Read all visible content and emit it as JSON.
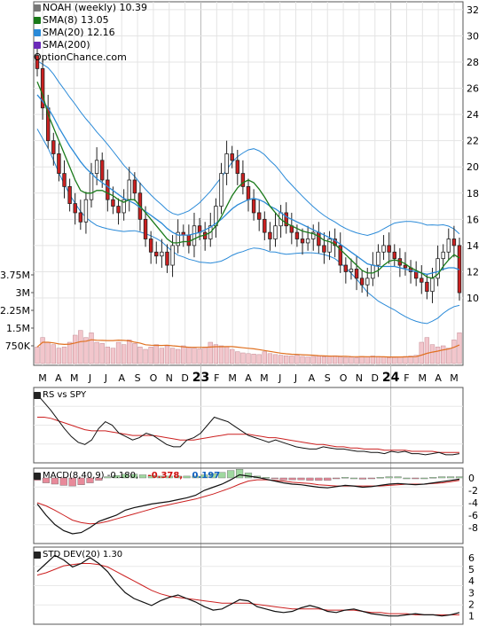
{
  "legend": {
    "ticker_label": "NOAH (weekly) 10.39",
    "sma8_label": "SMA(8) 13.05",
    "sma20_label": "SMA(20) 12.16",
    "sma200_label": "SMA(200)",
    "site": "OptionChance.com",
    "colors": {
      "sma8": "#1a7a1a",
      "sma20": "#2a8ad8",
      "sma200": "#6a2ab8",
      "ticker": "#777777"
    }
  },
  "indicators": {
    "rs_label": "RS vs SPY",
    "macd_label": "MACD(8,40,9) -0.180,",
    "macd_val1": "-0.378,",
    "macd_val2": "0.197",
    "std_label": "STD DEV(20) 1.30"
  },
  "chart_data": [
    {
      "type": "candlestick",
      "title": "NOAH (weekly)",
      "x_labels": [
        "M",
        "A",
        "M",
        "J",
        "J",
        "A",
        "S",
        "O",
        "N",
        "D",
        "23",
        "F",
        "M",
        "A",
        "M",
        "J",
        "J",
        "A",
        "S",
        "O",
        "N",
        "D",
        "24",
        "F",
        "M",
        "A",
        "M"
      ],
      "price_ticks": [
        10,
        12,
        14,
        16,
        18,
        20,
        22,
        24,
        26,
        28,
        30,
        32
      ],
      "volume_ticks": [
        "750K",
        "1.5M",
        "2.25M",
        "3M",
        "3.75M"
      ],
      "close": [
        27.5,
        24.5,
        22.0,
        21.0,
        19.5,
        18.5,
        17.2,
        16.5,
        15.8,
        17.5,
        19.5,
        20.5,
        19.0,
        17.5,
        17.0,
        16.5,
        17.5,
        19.0,
        18.0,
        16.0,
        14.5,
        13.5,
        13.2,
        13.5,
        12.5,
        14.0,
        15.0,
        14.8,
        14.0,
        15.5,
        15.0,
        14.5,
        15.5,
        17.0,
        19.5,
        21.0,
        20.5,
        19.5,
        18.5,
        17.5,
        16.5,
        16.0,
        15.0,
        14.5,
        15.5,
        16.5,
        15.5,
        15.0,
        14.5,
        14.2,
        14.5,
        15.0,
        14.0,
        13.5,
        14.5,
        14.0,
        12.5,
        12.0,
        12.2,
        11.5,
        11.0,
        11.5,
        12.5,
        13.5,
        14.0,
        13.5,
        13.0,
        12.5,
        12.3,
        12.0,
        11.5,
        11.2,
        10.5,
        11.5,
        13.0,
        13.5,
        14.5,
        14.0,
        10.4
      ],
      "sma8": [
        26.5,
        25.5,
        24.0,
        23.0,
        22.0,
        21.0,
        20.0,
        19.0,
        18.2,
        18.0,
        18.0,
        18.2,
        18.2,
        18.0,
        17.8,
        17.5,
        17.3,
        17.5,
        17.5,
        17.0,
        16.5,
        16.0,
        15.5,
        15.0,
        14.5,
        14.2,
        14.2,
        14.3,
        14.3,
        14.5,
        14.7,
        14.8,
        15.0,
        15.5,
        16.2,
        17.0,
        17.8,
        18.4,
        18.8,
        19.0,
        18.8,
        18.3,
        17.7,
        17.0,
        16.5,
        16.0,
        15.7,
        15.5,
        15.3,
        15.1,
        15.0,
        14.9,
        14.7,
        14.4,
        14.3,
        14.1,
        13.7,
        13.3,
        12.9,
        12.5,
        12.1,
        11.9,
        11.9,
        12.1,
        12.5,
        12.8,
        12.9,
        12.8,
        12.6,
        12.3,
        12.1,
        11.9,
        11.6,
        11.5,
        11.8,
        12.4,
        12.9,
        13.3,
        13.05
      ],
      "sma20": [
        25.5,
        25.0,
        24.5,
        23.8,
        23.0,
        22.3,
        21.6,
        21.0,
        20.4,
        19.9,
        19.5,
        19.1,
        18.8,
        18.5,
        18.2,
        17.9,
        17.6,
        17.4,
        17.2,
        16.9,
        16.6,
        16.3,
        16.0,
        15.7,
        15.3,
        15.0,
        14.8,
        14.8,
        14.8,
        14.9,
        15.0,
        15.2,
        15.4,
        15.7,
        16.0,
        16.4,
        16.8,
        17.1,
        17.3,
        17.5,
        17.6,
        17.5,
        17.3,
        17.0,
        16.8,
        16.5,
        16.2,
        16.0,
        15.8,
        15.6,
        15.4,
        15.2,
        15.0,
        14.8,
        14.6,
        14.4,
        14.1,
        13.8,
        13.5,
        13.2,
        12.9,
        12.6,
        12.5,
        12.4,
        12.4,
        12.4,
        12.4,
        12.3,
        12.2,
        12.1,
        12.0,
        11.9,
        11.8,
        11.9,
        12.0,
        12.2,
        12.3,
        12.3,
        12.16
      ],
      "volume_k": [
        700,
        1100,
        900,
        800,
        650,
        700,
        900,
        1200,
        1400,
        1100,
        1300,
        900,
        850,
        700,
        650,
        900,
        800,
        1000,
        850,
        700,
        600,
        700,
        800,
        650,
        750,
        650,
        600,
        750,
        700,
        650,
        620,
        700,
        900,
        800,
        750,
        700,
        600,
        500,
        450,
        420,
        400,
        380,
        500,
        420,
        380,
        350,
        330,
        320,
        350,
        300,
        280,
        300,
        320,
        290,
        310,
        330,
        280,
        260,
        270,
        250,
        300,
        280,
        320,
        300,
        270,
        250,
        260,
        280,
        300,
        320,
        350,
        900,
        1100,
        800,
        700,
        750,
        650,
        1000,
        1300
      ],
      "ylim": [
        9,
        33
      ]
    },
    {
      "type": "line",
      "title": "RS vs SPY",
      "series": [
        {
          "values": [
            62,
            55,
            48,
            40,
            32,
            25,
            20,
            18,
            22,
            32,
            38,
            35,
            28,
            25,
            22,
            24,
            28,
            26,
            22,
            18,
            16,
            16,
            22,
            24,
            28,
            35,
            42,
            40,
            38,
            34,
            30,
            26,
            24,
            22,
            20,
            22,
            20,
            18,
            16,
            15,
            14,
            14,
            16,
            15,
            14,
            14,
            13,
            12,
            12,
            11,
            11,
            10,
            12,
            11,
            12,
            10,
            10,
            9,
            10,
            11,
            9,
            9,
            10
          ]
        },
        {
          "values": [
            42,
            42,
            41,
            39,
            37,
            35,
            33,
            31,
            30,
            30,
            30,
            29,
            28,
            27,
            26,
            26,
            26,
            26,
            25,
            24,
            23,
            22,
            22,
            22,
            23,
            24,
            25,
            26,
            27,
            27,
            27,
            27,
            26,
            25,
            24,
            24,
            23,
            22,
            21,
            20,
            19,
            18,
            18,
            17,
            16,
            16,
            15,
            15,
            14,
            14,
            14,
            13,
            13,
            13,
            13,
            12,
            12,
            12,
            12,
            11,
            11,
            11,
            11
          ]
        }
      ]
    },
    {
      "type": "line",
      "title": "MACD(8,40,9)",
      "y_ticks": [
        0,
        -2,
        -4,
        -6,
        -8
      ],
      "series": [
        {
          "name": "MACD",
          "values": [
            -4.2,
            -6.0,
            -7.5,
            -8.5,
            -9.0,
            -8.8,
            -8.0,
            -7.0,
            -6.5,
            -6.0,
            -5.2,
            -4.8,
            -4.5,
            -4.2,
            -4.0,
            -3.8,
            -3.5,
            -3.2,
            -2.8,
            -2.0,
            -1.5,
            -1.0,
            -0.3,
            0.5,
            0.3,
            0.1,
            -0.2,
            -0.5,
            -0.8,
            -1.0,
            -1.1,
            -1.3,
            -1.5,
            -1.6,
            -1.4,
            -1.2,
            -1.3,
            -1.5,
            -1.4,
            -1.2,
            -1.0,
            -0.9,
            -1.0,
            -1.1,
            -1.0,
            -0.8,
            -0.6,
            -0.4,
            -0.2
          ]
        },
        {
          "name": "Signal",
          "values": [
            -4.0,
            -4.5,
            -5.2,
            -6.0,
            -6.8,
            -7.2,
            -7.4,
            -7.3,
            -7.0,
            -6.6,
            -6.2,
            -5.8,
            -5.4,
            -5.0,
            -4.6,
            -4.3,
            -4.0,
            -3.7,
            -3.4,
            -3.0,
            -2.6,
            -2.1,
            -1.6,
            -1.0,
            -0.5,
            -0.3,
            -0.3,
            -0.4,
            -0.5,
            -0.7,
            -0.8,
            -0.9,
            -1.1,
            -1.2,
            -1.3,
            -1.3,
            -1.3,
            -1.3,
            -1.3,
            -1.3,
            -1.2,
            -1.1,
            -1.0,
            -1.0,
            -1.0,
            -0.9,
            -0.8,
            -0.6,
            -0.4
          ]
        },
        {
          "name": "Histogram",
          "values": [
            -0.4,
            -0.8,
            -1.0,
            -1.2,
            -1.3,
            -1.1,
            -0.8,
            -0.4,
            0.2,
            0.4,
            0.6,
            0.6,
            0.5,
            0.4,
            0.3,
            0.3,
            0.3,
            0.3,
            0.3,
            0.5,
            0.7,
            0.9,
            1.2,
            1.4,
            0.8,
            0.3,
            0.1,
            -0.1,
            -0.3,
            -0.3,
            -0.3,
            -0.4,
            -0.4,
            -0.4,
            -0.1,
            0.1,
            0.0,
            -0.2,
            -0.1,
            0.1,
            0.2,
            0.2,
            0.0,
            -0.1,
            0.0,
            0.1,
            0.2,
            0.2,
            0.2
          ]
        }
      ]
    },
    {
      "type": "line",
      "title": "STD DEV(20)",
      "y_ticks": [
        1,
        2,
        3,
        4,
        5,
        6
      ],
      "series": [
        {
          "name": "STD DEV",
          "values": [
            4.8,
            5.5,
            6.2,
            5.8,
            5.2,
            5.5,
            6.0,
            5.5,
            4.8,
            3.8,
            3.0,
            2.5,
            2.2,
            1.9,
            2.3,
            2.6,
            2.8,
            2.5,
            2.2,
            1.8,
            1.5,
            1.6,
            2.0,
            2.4,
            2.3,
            1.8,
            1.6,
            1.4,
            1.3,
            1.4,
            1.7,
            1.9,
            1.7,
            1.4,
            1.3,
            1.5,
            1.6,
            1.4,
            1.2,
            1.1,
            1.0,
            1.0,
            1.1,
            1.2,
            1.1,
            1.1,
            1.0,
            1.1,
            1.3
          ]
        },
        {
          "name": "Average",
          "values": [
            4.5,
            4.7,
            5.0,
            5.3,
            5.4,
            5.5,
            5.5,
            5.4,
            5.2,
            4.8,
            4.4,
            4.0,
            3.6,
            3.2,
            2.9,
            2.7,
            2.6,
            2.5,
            2.4,
            2.3,
            2.2,
            2.1,
            2.1,
            2.1,
            2.1,
            2.0,
            1.9,
            1.8,
            1.7,
            1.6,
            1.6,
            1.6,
            1.6,
            1.5,
            1.5,
            1.5,
            1.5,
            1.4,
            1.3,
            1.3,
            1.2,
            1.2,
            1.2,
            1.1,
            1.1,
            1.1,
            1.1,
            1.1,
            1.1
          ]
        }
      ]
    }
  ]
}
